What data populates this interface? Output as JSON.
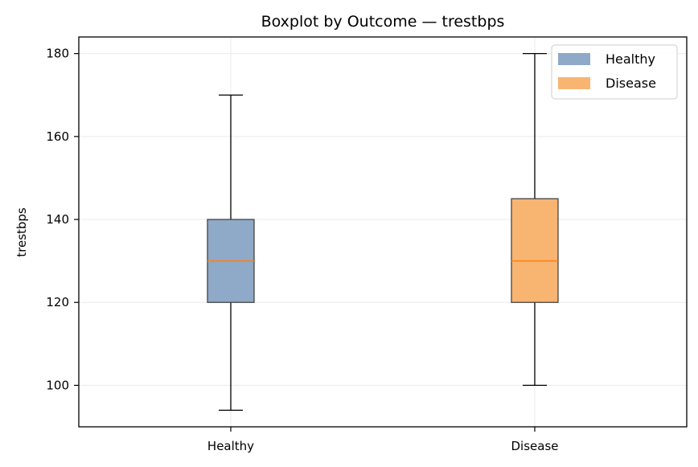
{
  "chart_data": {
    "type": "boxplot",
    "title": "Boxplot by Outcome — trestbps",
    "xlabel": "",
    "ylabel": "trestbps",
    "categories": [
      "Healthy",
      "Disease"
    ],
    "ylim": [
      90,
      184
    ],
    "yticks": [
      100,
      120,
      140,
      160,
      180
    ],
    "grid": true,
    "legend_position": "top-right",
    "series": [
      {
        "name": "Healthy",
        "whisker_low": 94,
        "q1": 120,
        "median": 130,
        "q3": 140,
        "whisker_high": 170,
        "color": "#8fa9c8"
      },
      {
        "name": "Disease",
        "whisker_low": 100,
        "q1": 120,
        "median": 130,
        "q3": 145,
        "whisker_high": 180,
        "color": "#f8b572"
      }
    ],
    "median_color": "#ff7f0e"
  }
}
